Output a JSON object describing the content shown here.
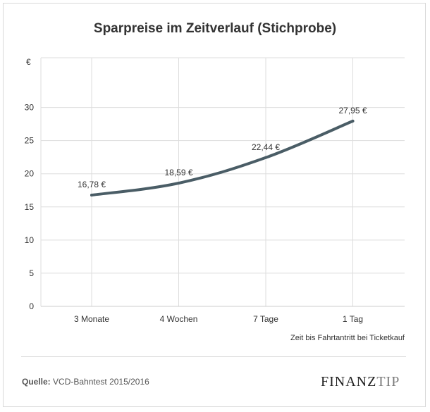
{
  "colors": {
    "line": "#4a5d66",
    "grid": "#dddddd",
    "text": "#333333",
    "frame": "#d9d9d9"
  },
  "chart_data": {
    "type": "line",
    "title": "Sparpreise im Zeitverlauf (Stichprobe)",
    "ylabel": "€",
    "xlabel": "Zeit bis Fahrtantritt bei Ticketkauf",
    "categories": [
      "3 Monate",
      "4 Wochen",
      "7 Tage",
      "1 Tag"
    ],
    "series": [
      {
        "name": "Sparpreis",
        "values": [
          16.78,
          18.59,
          22.44,
          27.95
        ]
      }
    ],
    "data_labels": [
      "16,78 €",
      "18,59 €",
      "22,44 €",
      "27,95 €"
    ],
    "yticks": [
      0,
      5,
      10,
      15,
      20,
      25,
      30
    ],
    "ylim": [
      0,
      37.5
    ],
    "grid": true
  },
  "footer": {
    "source_label": "Quelle:",
    "source_text": "VCD-Bahntest 2015/2016",
    "logo_main": "FINANZ",
    "logo_accent": "TIP"
  }
}
